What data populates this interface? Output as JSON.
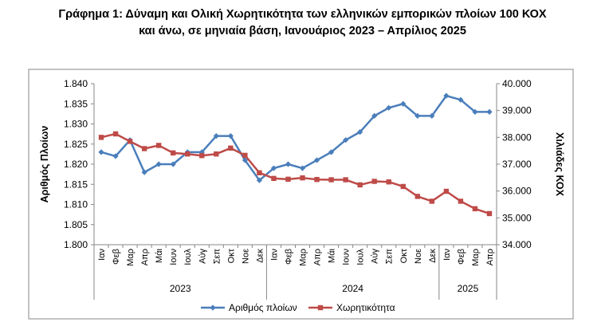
{
  "title_line1": "Γράφημα 1: Δύναμη και Ολική Χωρητικότητα των ελληνικών εμπορικών πλοίων 100 ΚΟΧ",
  "title_line2": "και άνω, σε μηνιαία βάση, Ιανουάριος 2023 – Απρίλιος 2025",
  "chart_data": {
    "type": "line",
    "title": "Γράφημα 1: Δύναμη και Ολική Χωρητικότητα των ελληνικών εμπορικών πλοίων 100 ΚΟΧ και άνω, σε μηνιαία βάση, Ιανουάριος 2023 – Απρίλιος 2025",
    "categories": [
      "Ιαν",
      "Φεβ",
      "Μαρ",
      "Απρ",
      "Μάι",
      "Ιουν",
      "Ιουλ",
      "Αύγ",
      "Σεπ",
      "Οκτ",
      "Νοε",
      "Δεκ",
      "Ιαν",
      "Φεβ",
      "Μαρ",
      "Απρ",
      "Μάι",
      "Ιουν",
      "Ιουλ",
      "Αύγ",
      "Σεπ",
      "Οκτ",
      "Νοε",
      "Δεκ",
      "Ιαν",
      "Φεβ",
      "Μαρ",
      "Απρ"
    ],
    "year_groups": [
      {
        "label": "2023",
        "start": 0,
        "end": 11
      },
      {
        "label": "2024",
        "start": 12,
        "end": 23
      },
      {
        "label": "2025",
        "start": 24,
        "end": 27
      }
    ],
    "ylabel": "Αριθμός Πλοίων",
    "y2label": "Χιλιάδες ΚΟΧ",
    "ylim": [
      1800,
      1840
    ],
    "yticks": [
      "1.800",
      "1.805",
      "1.810",
      "1.815",
      "1.820",
      "1.825",
      "1.830",
      "1.835",
      "1.840"
    ],
    "y2lim": [
      34000,
      40000
    ],
    "y2ticks": [
      "34.000",
      "35.000",
      "36.000",
      "37.000",
      "38.000",
      "39.000",
      "40.000"
    ],
    "legend_position": "bottom",
    "grid": false,
    "series": [
      {
        "name": "Αριθμός πλοίων",
        "axis": "left",
        "color": "#4a7ebb",
        "marker": "diamond",
        "values": [
          1823,
          1822,
          1826,
          1818,
          1820,
          1820,
          1823,
          1823,
          1827,
          1827,
          1821,
          1816,
          1819,
          1820,
          1819,
          1821,
          1823,
          1826,
          1828,
          1832,
          1834,
          1835,
          1832,
          1832,
          1837,
          1836,
          1833,
          1833
        ]
      },
      {
        "name": "Χωρητικότητα",
        "axis": "right",
        "color": "#be4b48",
        "marker": "square",
        "values": [
          38000,
          38130,
          37850,
          37580,
          37700,
          37420,
          37380,
          37320,
          37380,
          37600,
          37330,
          36680,
          36470,
          36440,
          36490,
          36430,
          36420,
          36420,
          36230,
          36360,
          36340,
          36170,
          35800,
          35620,
          35990,
          35620,
          35340,
          35160
        ]
      }
    ]
  }
}
